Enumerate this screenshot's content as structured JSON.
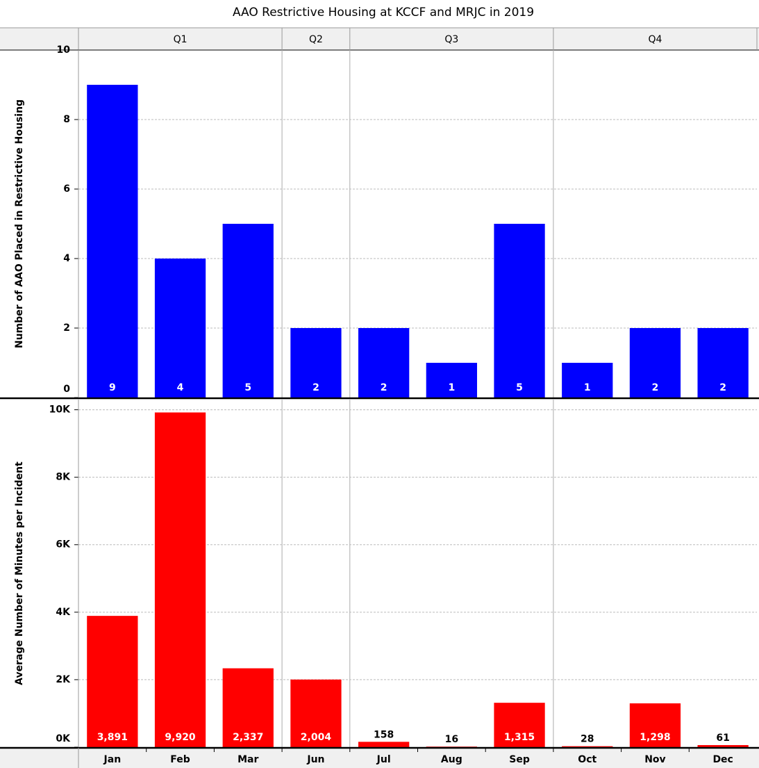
{
  "chart_data": [
    {
      "type": "bar",
      "title": "AAO Restrictive Housing at KCCF and MRJC in 2019",
      "groups": [
        {
          "name": "Q1",
          "categories": [
            "Jan",
            "Feb",
            "Mar"
          ]
        },
        {
          "name": "Q2",
          "categories": [
            "Jun"
          ]
        },
        {
          "name": "Q3",
          "categories": [
            "Jul",
            "Aug",
            "Sep"
          ]
        },
        {
          "name": "Q4",
          "categories": [
            "Oct",
            "Nov",
            "Dec"
          ]
        }
      ],
      "ylabel": "Number of AAO Placed in Restrictive Housing",
      "values": [
        9,
        4,
        5,
        2,
        2,
        1,
        5,
        1,
        2,
        2
      ],
      "color": "#0000ff",
      "ylim": [
        0,
        10
      ],
      "yticks": [
        0,
        2,
        4,
        6,
        8,
        10
      ],
      "grid": true
    },
    {
      "type": "bar",
      "ylabel": "Average Number of Minutes per Incident",
      "values": [
        3891,
        9920,
        2337,
        2004,
        158,
        16,
        1315,
        28,
        1298,
        61
      ],
      "value_labels": [
        "3,891",
        "9,920",
        "2,337",
        "2,004",
        "158",
        "16",
        "1,315",
        "28",
        "1,298",
        "61"
      ],
      "color": "#ff0000",
      "ylim": [
        0,
        10300
      ],
      "yticks": [
        {
          "value": 0,
          "label": "0K"
        },
        {
          "value": 2000,
          "label": "2K"
        },
        {
          "value": 4000,
          "label": "4K"
        },
        {
          "value": 6000,
          "label": "6K"
        },
        {
          "value": 8000,
          "label": "8K"
        },
        {
          "value": 10000,
          "label": "10K"
        }
      ],
      "grid": true
    }
  ]
}
